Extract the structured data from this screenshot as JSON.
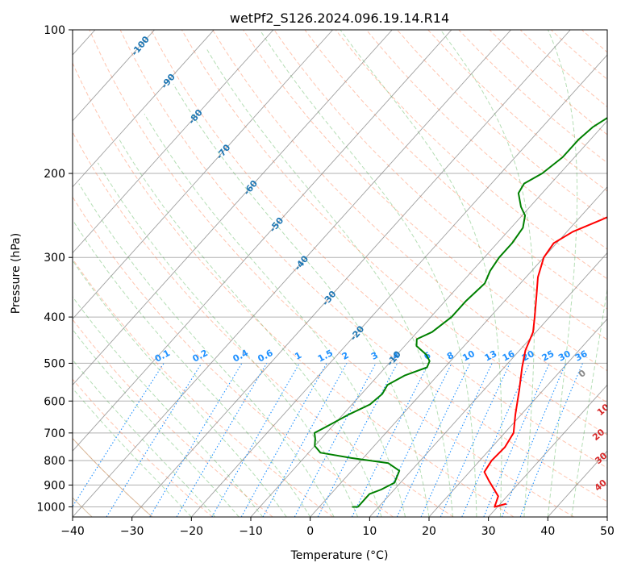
{
  "chart_data": {
    "type": "line",
    "title": "wetPf2_S126.2024.096.19.14.R14",
    "xlabel": "Temperature (°C)",
    "ylabel": "Pressure (hPa)",
    "xlim": [
      -40,
      50
    ],
    "ylim": [
      1050,
      100
    ],
    "yscale": "log",
    "grid": true,
    "x_ticks": [
      "−40",
      "−30",
      "−20",
      "−10",
      "0",
      "10",
      "20",
      "30",
      "40",
      "50"
    ],
    "y_ticks": [
      "100",
      "200",
      "300",
      "400",
      "500",
      "600",
      "700",
      "800",
      "900",
      "1000"
    ],
    "series": [
      {
        "color": "#ff0000",
        "points": [
          [
            31,
            985
          ],
          [
            29.5,
            1000
          ],
          [
            28.5,
            950
          ],
          [
            24.5,
            880
          ],
          [
            22.5,
            845
          ],
          [
            22,
            800
          ],
          [
            22.2,
            750
          ],
          [
            21.5,
            700
          ],
          [
            19,
            640
          ],
          [
            16,
            570
          ],
          [
            13,
            510
          ],
          [
            11,
            470
          ],
          [
            9.5,
            430
          ],
          [
            7.5,
            400
          ],
          [
            4.5,
            360
          ],
          [
            2,
            330
          ],
          [
            0,
            300
          ],
          [
            -0.5,
            280
          ],
          [
            1,
            265
          ],
          [
            4,
            250
          ],
          [
            7,
            235
          ],
          [
            10,
            215
          ],
          [
            11,
            200
          ],
          [
            11.5,
            180
          ],
          [
            11.5,
            160
          ],
          [
            10.5,
            145
          ],
          [
            10,
            130
          ],
          [
            11,
            118
          ],
          [
            12.5,
            108
          ],
          [
            13.5,
            100
          ]
        ]
      },
      {
        "color": "#008000",
        "points": [
          [
            5.5,
            1000
          ],
          [
            6.5,
            1000
          ],
          [
            6.5,
            970
          ],
          [
            6.5,
            940
          ],
          [
            7.8,
            920
          ],
          [
            9,
            890
          ],
          [
            8,
            840
          ],
          [
            5,
            810
          ],
          [
            -2,
            790
          ],
          [
            -8,
            770
          ],
          [
            -10,
            745
          ],
          [
            -11,
            720
          ],
          [
            -12,
            700
          ],
          [
            -11,
            680
          ],
          [
            -9,
            640
          ],
          [
            -7,
            610
          ],
          [
            -6.5,
            580
          ],
          [
            -7,
            555
          ],
          [
            -5.5,
            530
          ],
          [
            -3,
            510
          ],
          [
            -3.5,
            495
          ],
          [
            -5,
            480
          ],
          [
            -8,
            460
          ],
          [
            -9,
            445
          ],
          [
            -7.5,
            430
          ],
          [
            -6.5,
            400
          ],
          [
            -6.5,
            370
          ],
          [
            -6,
            340
          ],
          [
            -7,
            320
          ],
          [
            -7.5,
            300
          ],
          [
            -7.5,
            280
          ],
          [
            -8,
            260
          ],
          [
            -9.5,
            245
          ],
          [
            -11.5,
            235
          ],
          [
            -14,
            220
          ],
          [
            -14.5,
            210
          ],
          [
            -13,
            200
          ],
          [
            -12,
            185
          ],
          [
            -12,
            170
          ],
          [
            -11.5,
            160
          ],
          [
            -10,
            150
          ],
          [
            -8,
            140
          ],
          [
            -6,
            130
          ],
          [
            -4.5,
            120
          ],
          [
            -3.5,
            110
          ],
          [
            -2,
            100
          ]
        ]
      }
    ],
    "dry_adiabat_labels": [
      "-100",
      "-90",
      "-80",
      "-70",
      "-60",
      "-50",
      "-40",
      "-30",
      "-20",
      "-10"
    ],
    "mixing_ratio_labels": [
      "0.1",
      "0.2",
      "0.4",
      "0.6",
      "1",
      "1.5",
      "2",
      "3",
      "4",
      "6",
      "8",
      "10",
      "13",
      "16",
      "20",
      "25",
      "30",
      "36"
    ],
    "moist_adiabat_labels": [
      "0",
      "10",
      "20",
      "30",
      "40"
    ],
    "colors": {
      "isotherm": "#808080",
      "dry_adiabat": "#ff7f50",
      "moist_adiabat": "#2ca02c",
      "mixing_ratio": "#1e90ff",
      "dry_label": "#1f77b4",
      "moist_label": "#d62728"
    }
  }
}
